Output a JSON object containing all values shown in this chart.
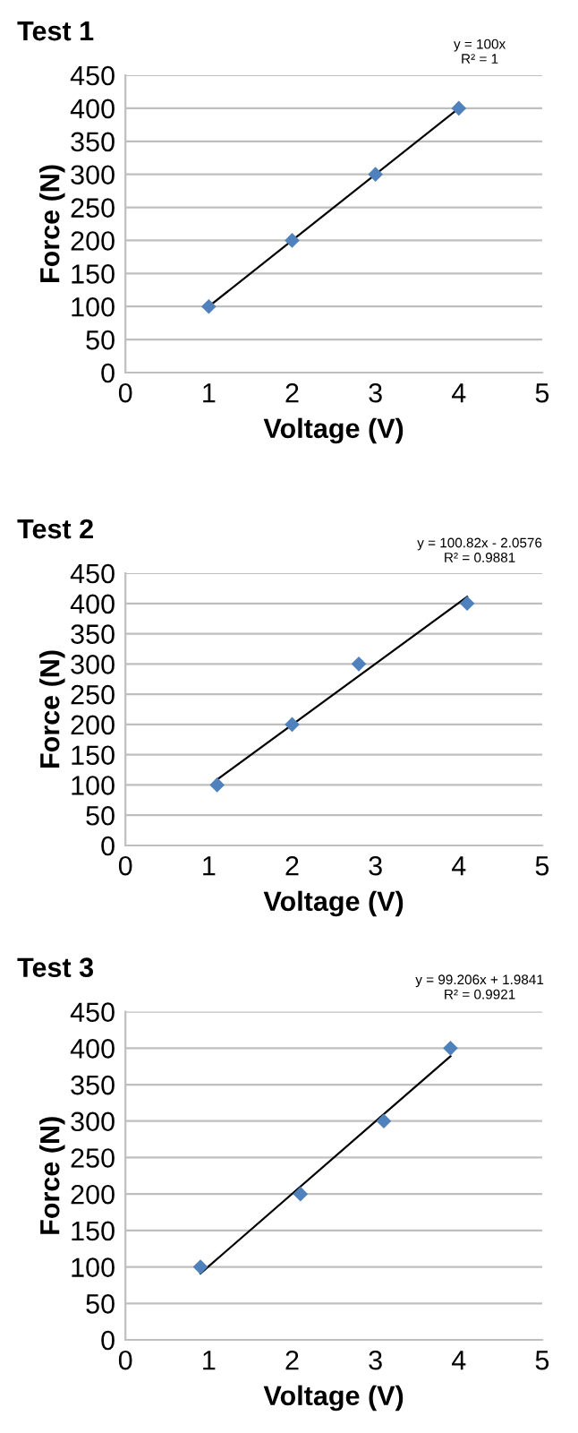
{
  "chart_data": [
    {
      "type": "scatter",
      "title": "Test 1",
      "xlabel": "Voltage (V)",
      "ylabel": "Force (N)",
      "xlim": [
        0,
        5
      ],
      "xticks": [
        0,
        1,
        2,
        3,
        4,
        5
      ],
      "ylim": [
        0,
        450
      ],
      "yticks": [
        0,
        50,
        100,
        150,
        200,
        250,
        300,
        350,
        400,
        450
      ],
      "grid": "y",
      "marker": "diamond",
      "annotations": [
        "y = 100x\nR² = 1"
      ],
      "series": [
        {
          "color": "#4f81bd",
          "x": [
            1,
            2,
            3,
            4
          ],
          "values": [
            100,
            200,
            300,
            400
          ]
        },
        {
          "type": "line",
          "color": "#000000",
          "marker": "none",
          "x": [
            1,
            4
          ],
          "values": [
            100,
            400
          ]
        }
      ]
    },
    {
      "type": "scatter",
      "title": "Test 2",
      "xlabel": "Voltage (V)",
      "ylabel": "Force (N)",
      "xlim": [
        0,
        5
      ],
      "xticks": [
        0,
        1,
        2,
        3,
        4,
        5
      ],
      "ylim": [
        0,
        450
      ],
      "yticks": [
        0,
        50,
        100,
        150,
        200,
        250,
        300,
        350,
        400,
        450
      ],
      "grid": "y",
      "marker": "diamond",
      "annotations": [
        "y = 100.82x - 2.0576\nR² = 0.9881"
      ],
      "series": [
        {
          "color": "#4f81bd",
          "x": [
            1.1,
            2,
            2.8,
            4.1
          ],
          "values": [
            100,
            200,
            300,
            400
          ]
        },
        {
          "type": "line",
          "color": "#000000",
          "marker": "none",
          "x": [
            1.1,
            4.1
          ],
          "values": [
            109,
            411
          ]
        }
      ]
    },
    {
      "type": "scatter",
      "title": "Test 3",
      "xlabel": "Voltage (V)",
      "ylabel": "Force (N)",
      "xlim": [
        0,
        5
      ],
      "xticks": [
        0,
        1,
        2,
        3,
        4,
        5
      ],
      "ylim": [
        0,
        450
      ],
      "yticks": [
        0,
        50,
        100,
        150,
        200,
        250,
        300,
        350,
        400,
        450
      ],
      "grid": "y",
      "marker": "diamond",
      "annotations": [
        "y = 99.206x + 1.9841\nR² = 0.9921"
      ],
      "series": [
        {
          "color": "#4f81bd",
          "x": [
            0.9,
            2.1,
            3.1,
            3.9
          ],
          "values": [
            100,
            200,
            300,
            400
          ]
        },
        {
          "type": "line",
          "color": "#000000",
          "marker": "none",
          "x": [
            0.9,
            3.9
          ],
          "values": [
            91,
            389
          ]
        }
      ]
    }
  ]
}
